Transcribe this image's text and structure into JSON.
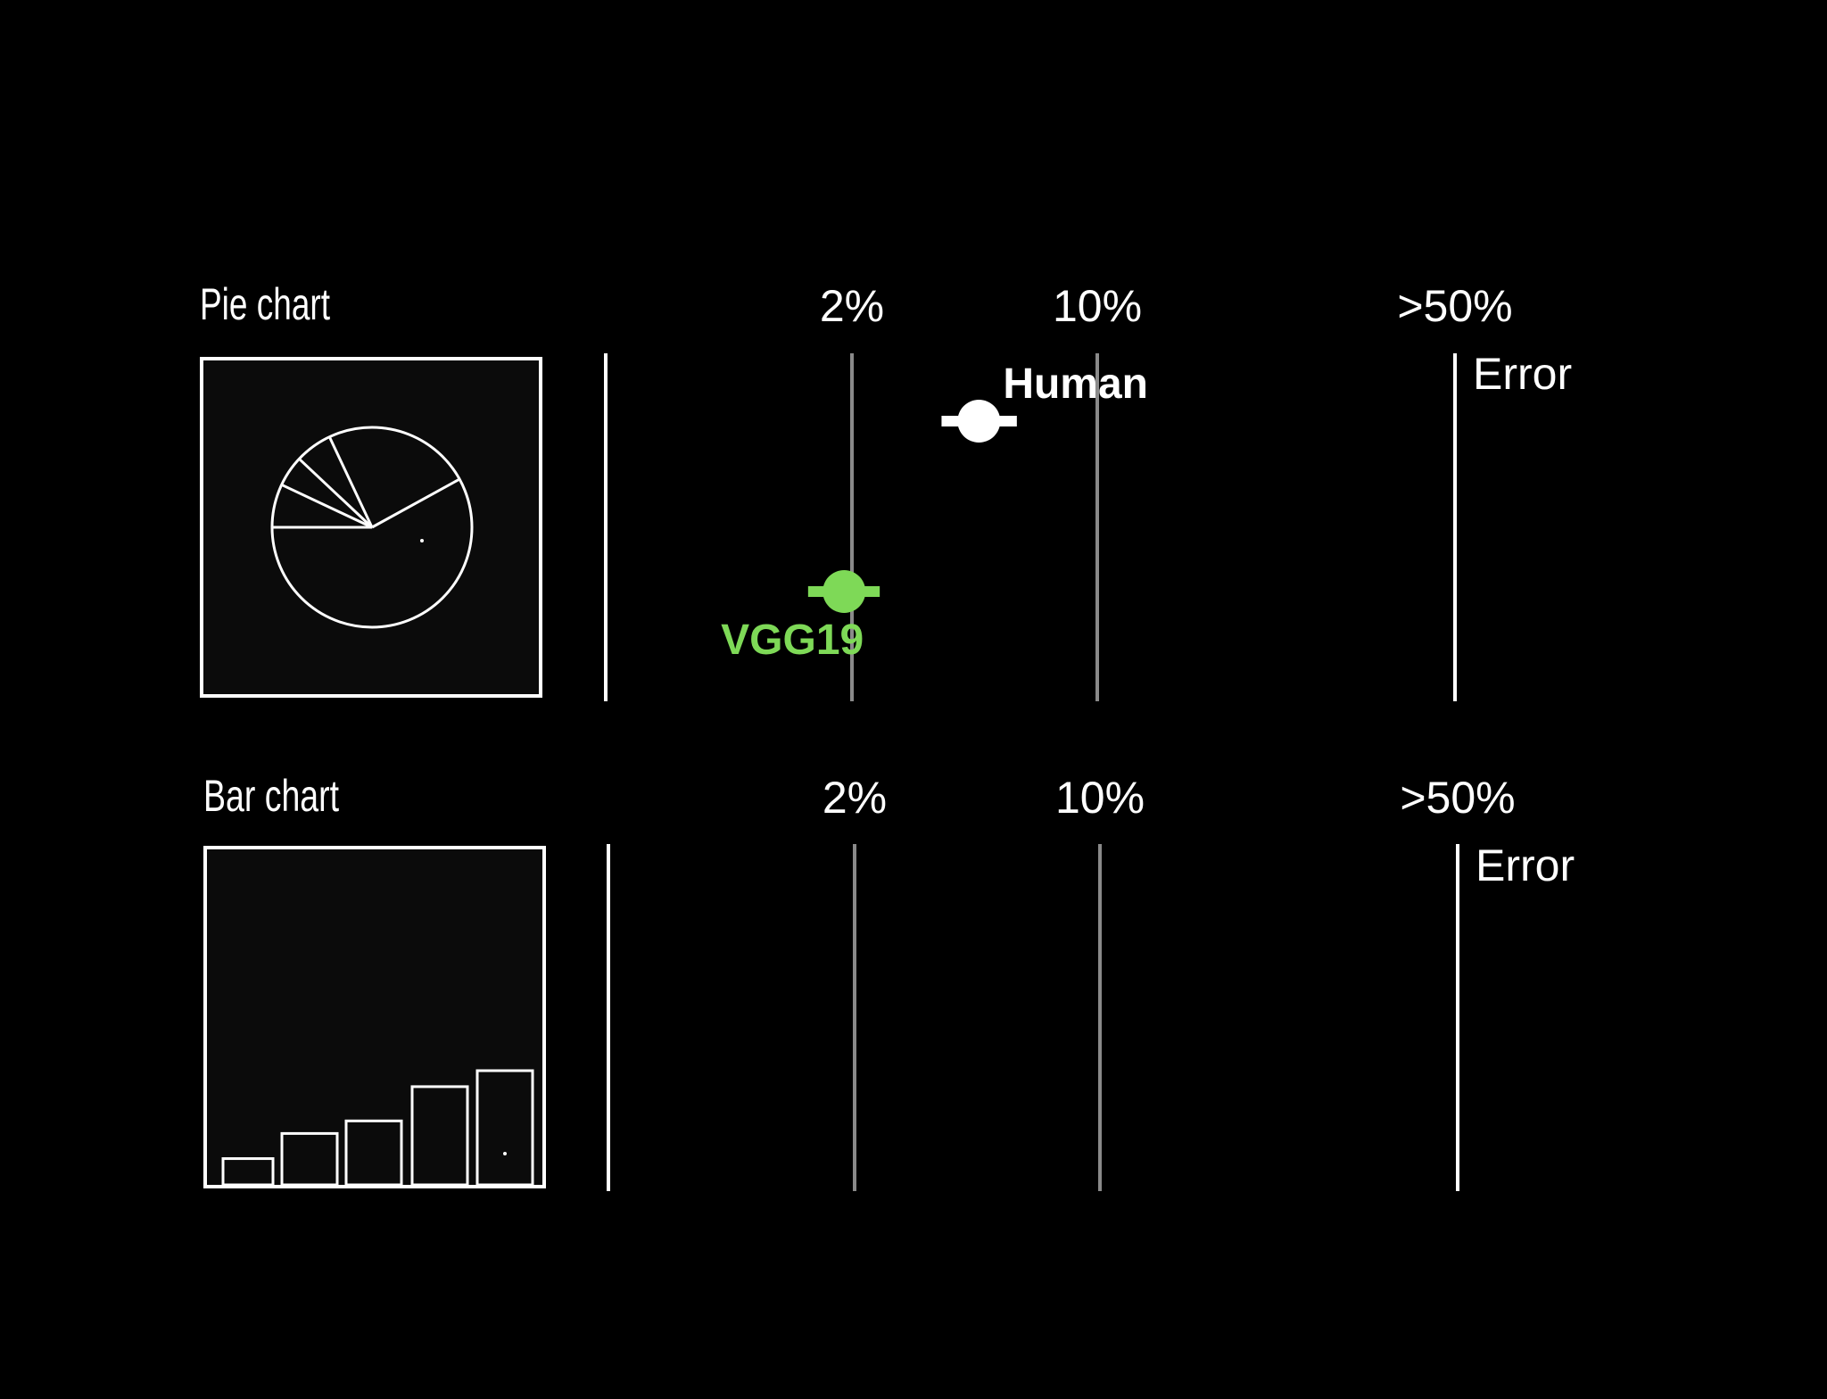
{
  "colors": {
    "background": "#000000",
    "foreground": "#ffffff",
    "gridline": "#8a8a8a",
    "human": "#ffffff",
    "vgg19": "#7ed957"
  },
  "chart_data": [
    {
      "type": "scatter",
      "title": "Pie chart",
      "stimulus": "pie",
      "x_scale": "log",
      "x_ticks": [
        "2%",
        "10%",
        ">50%"
      ],
      "end_label": "Error",
      "pie_slices": [
        0.07,
        0.05,
        0.06,
        0.24,
        0.58
      ],
      "series": [
        {
          "name": "Human",
          "error_percent": 4.6,
          "ci_low": 3.6,
          "ci_high": 5.9
        },
        {
          "name": "VGG19",
          "error_percent": 1.9,
          "ci_low": 1.5,
          "ci_high": 2.4
        }
      ]
    },
    {
      "type": "scatter",
      "title": "Bar chart",
      "stimulus": "bar",
      "x_scale": "log",
      "x_ticks": [
        "2%",
        "10%",
        ">50%"
      ],
      "end_label": "Error",
      "bar_values": [
        0.23,
        0.45,
        0.56,
        0.86,
        1.0
      ],
      "series": []
    }
  ]
}
